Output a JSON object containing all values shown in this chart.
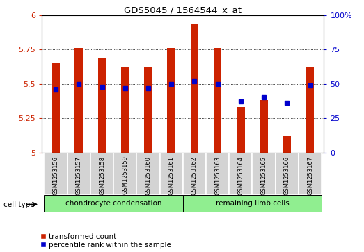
{
  "title": "GDS5045 / 1564544_x_at",
  "samples": [
    "GSM1253156",
    "GSM1253157",
    "GSM1253158",
    "GSM1253159",
    "GSM1253160",
    "GSM1253161",
    "GSM1253162",
    "GSM1253163",
    "GSM1253164",
    "GSM1253165",
    "GSM1253166",
    "GSM1253167"
  ],
  "bar_values": [
    5.65,
    5.76,
    5.69,
    5.62,
    5.62,
    5.76,
    5.94,
    5.76,
    5.33,
    5.38,
    5.12,
    5.62
  ],
  "percentile_values": [
    46,
    50,
    48,
    47,
    47,
    50,
    52,
    50,
    37,
    40,
    36,
    49
  ],
  "bar_color": "#cc2200",
  "dot_color": "#0000cc",
  "ylim_left": [
    5.0,
    6.0
  ],
  "ylim_right": [
    0,
    100
  ],
  "yticks_left": [
    5.0,
    5.25,
    5.5,
    5.75,
    6.0
  ],
  "ytick_labels_left": [
    "5",
    "5.25",
    "5.5",
    "5.75",
    "6"
  ],
  "yticks_right": [
    0,
    25,
    50,
    75,
    100
  ],
  "ytick_labels_right": [
    "0",
    "25",
    "50",
    "75",
    "100%"
  ],
  "cell_groups": [
    {
      "label": "chondrocyte condensation",
      "n_samples": 6,
      "color": "#90ee90"
    },
    {
      "label": "remaining limb cells",
      "n_samples": 6,
      "color": "#90ee90"
    }
  ],
  "legend_items": [
    {
      "label": "transformed count",
      "color": "#cc2200"
    },
    {
      "label": "percentile rank within the sample",
      "color": "#0000cc"
    }
  ],
  "cell_type_label": "cell type",
  "bar_width": 0.35,
  "xlim": [
    -0.6,
    11.6
  ]
}
